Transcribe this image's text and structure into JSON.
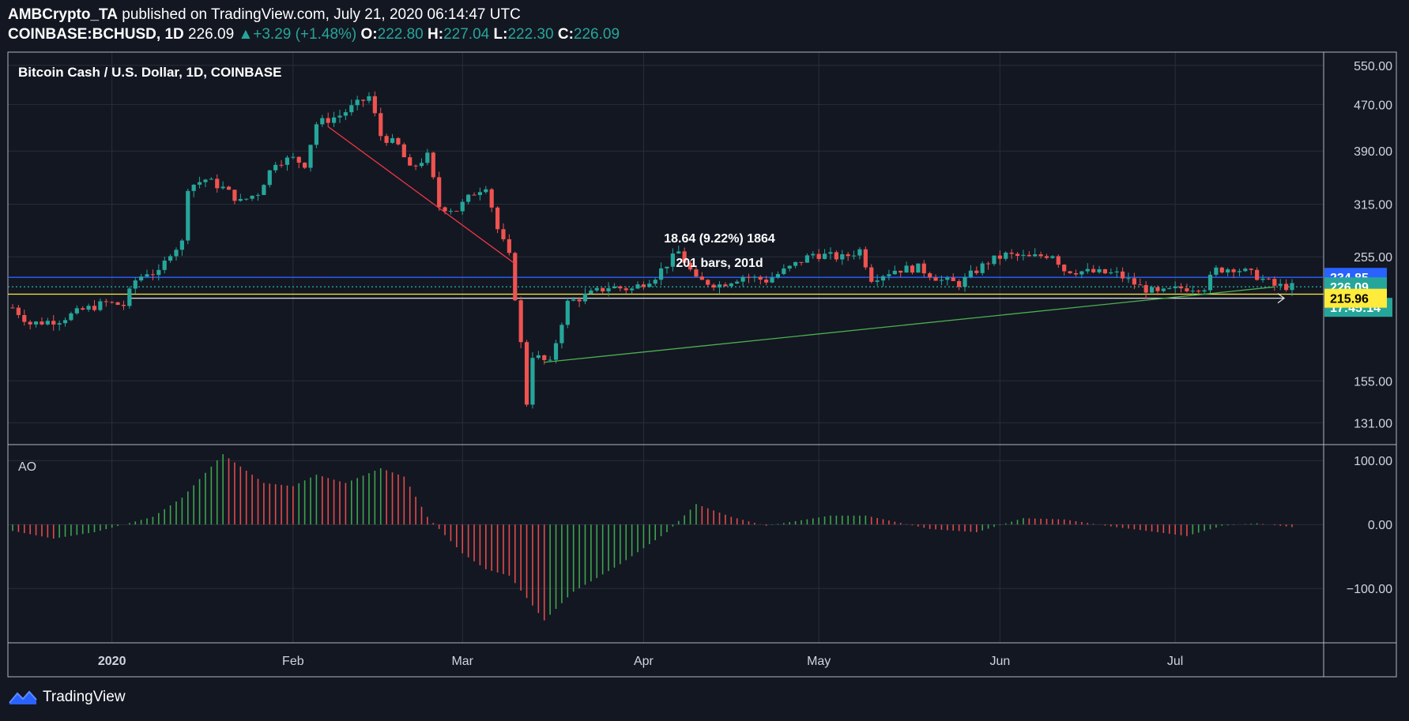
{
  "header": {
    "author": "AMBCrypto_TA",
    "published_text": "published on TradingView.com, July 21, 2020 06:14:47 UTC",
    "symbol": "COINBASE:BCHUSD, 1D",
    "price": "226.09",
    "change_arrow": "▲",
    "change": "+3.29 (+1.48%)",
    "o_label": "O:",
    "o_value": "222.80",
    "h_label": "H:",
    "h_value": "227.04",
    "l_label": "L:",
    "l_value": "222.30",
    "c_label": "C:",
    "c_value": "226.09"
  },
  "pane_title": "Bitcoin Cash / U.S. Dollar, 1D, COINBASE",
  "indicator_label": "AO",
  "footer": {
    "brand": "TradingView"
  },
  "colors": {
    "background": "#131722",
    "up": "#26a69a",
    "down": "#ef5350",
    "blue_line": "#2962ff",
    "yellow_line": "#ffeb3b",
    "trend_up": "#4caf50",
    "trend_down": "#f23645"
  },
  "chart_data": {
    "type": "candlestick",
    "title": "Bitcoin Cash / U.S. Dollar, 1D, COINBASE",
    "x_start": "2019-12-15",
    "x_end": "2020-07-21",
    "x_ticks": [
      {
        "label": "2020",
        "date": "2020-01-01"
      },
      {
        "label": "Feb",
        "date": "2020-02-01"
      },
      {
        "label": "Mar",
        "date": "2020-03-01"
      },
      {
        "label": "Apr",
        "date": "2020-04-01"
      },
      {
        "label": "May",
        "date": "2020-05-01"
      },
      {
        "label": "Jun",
        "date": "2020-06-01"
      },
      {
        "label": "Jul",
        "date": "2020-07-01"
      }
    ],
    "price_axis": {
      "scale": "log",
      "range": [
        120,
        580
      ],
      "ticks": [
        550,
        470,
        390,
        315,
        255,
        155,
        131
      ]
    },
    "price_tick_labels": [
      "550.00",
      "470.00",
      "390.00",
      "315.00",
      "255.00",
      "155.00",
      "131.00"
    ],
    "price_labels": [
      {
        "text": "234.85",
        "value": 234.85,
        "bg": "#2962ff",
        "fg": "#ffffff"
      },
      {
        "text": "226.09",
        "value": 226.09,
        "bg": "#26a69a",
        "fg": "#ffffff"
      },
      {
        "text": "17:45:14",
        "value": 226.09,
        "bg": "#26a69a",
        "fg": "#ffffff",
        "below": true
      },
      {
        "text": "215.96",
        "value": 215.96,
        "bg": "#ffeb3b",
        "fg": "#000000"
      }
    ],
    "horizontal_lines": [
      {
        "value": 234.85,
        "color": "#2962ff"
      },
      {
        "value": 226.09,
        "color": "#26a69a",
        "dotted": true
      },
      {
        "value": 219.5,
        "color": "#ffeb3b"
      },
      {
        "value": 215.96,
        "color": "#e0e0e0",
        "arrow": true,
        "from": "2020-01-04"
      }
    ],
    "trendlines": [
      {
        "from": [
          "2020-02-07",
          430
        ],
        "to": [
          "2020-03-10",
          248
        ],
        "color": "#f23645"
      },
      {
        "from": [
          "2020-03-15",
          167
        ],
        "to": [
          "2020-07-18",
          226
        ],
        "color": "#4caf50"
      }
    ],
    "measure_annotation": {
      "line1": "18.64 (9.22%) 1864",
      "line2": "201 bars, 201d",
      "date": "2020-04-14",
      "value": 255
    },
    "ohlc_anchors": [
      [
        "2019-12-15",
        208
      ],
      [
        "2019-12-18",
        195
      ],
      [
        "2019-12-23",
        198
      ],
      [
        "2019-12-27",
        206
      ],
      [
        "2019-12-31",
        212
      ],
      [
        "2020-01-03",
        210
      ],
      [
        "2020-01-05",
        232
      ],
      [
        "2020-01-07",
        240
      ],
      [
        "2020-01-09",
        238
      ],
      [
        "2020-01-11",
        260
      ],
      [
        "2020-01-13",
        270
      ],
      [
        "2020-01-14",
        338
      ],
      [
        "2020-01-17",
        348
      ],
      [
        "2020-01-20",
        336
      ],
      [
        "2020-01-23",
        318
      ],
      [
        "2020-01-26",
        330
      ],
      [
        "2020-01-29",
        374
      ],
      [
        "2020-02-01",
        378
      ],
      [
        "2020-02-03",
        370
      ],
      [
        "2020-02-05",
        435
      ],
      [
        "2020-02-09",
        450
      ],
      [
        "2020-02-14",
        485
      ],
      [
        "2020-02-16",
        415
      ],
      [
        "2020-02-19",
        398
      ],
      [
        "2020-02-21",
        362
      ],
      [
        "2020-02-24",
        382
      ],
      [
        "2020-02-26",
        312
      ],
      [
        "2020-02-29",
        308
      ],
      [
        "2020-03-03",
        330
      ],
      [
        "2020-03-05",
        340
      ],
      [
        "2020-03-07",
        285
      ],
      [
        "2020-03-09",
        255
      ],
      [
        "2020-03-12",
        142
      ],
      [
        "2020-03-13",
        172
      ],
      [
        "2020-03-16",
        166
      ],
      [
        "2020-03-19",
        212
      ],
      [
        "2020-03-22",
        218
      ],
      [
        "2020-03-26",
        226
      ],
      [
        "2020-03-30",
        224
      ],
      [
        "2020-04-03",
        236
      ],
      [
        "2020-04-07",
        260
      ],
      [
        "2020-04-10",
        232
      ],
      [
        "2020-04-14",
        228
      ],
      [
        "2020-04-18",
        236
      ],
      [
        "2020-04-22",
        232
      ],
      [
        "2020-04-26",
        244
      ],
      [
        "2020-04-30",
        258
      ],
      [
        "2020-05-05",
        254
      ],
      [
        "2020-05-08",
        262
      ],
      [
        "2020-05-10",
        234
      ],
      [
        "2020-05-14",
        242
      ],
      [
        "2020-05-18",
        244
      ],
      [
        "2020-05-22",
        232
      ],
      [
        "2020-05-25",
        229
      ],
      [
        "2020-05-30",
        250
      ],
      [
        "2020-06-02",
        257
      ],
      [
        "2020-06-06",
        254
      ],
      [
        "2020-06-10",
        258
      ],
      [
        "2020-06-12",
        242
      ],
      [
        "2020-06-16",
        240
      ],
      [
        "2020-06-21",
        238
      ],
      [
        "2020-06-25",
        226
      ],
      [
        "2020-06-28",
        220
      ],
      [
        "2020-07-02",
        225
      ],
      [
        "2020-07-06",
        226
      ],
      [
        "2020-07-08",
        242
      ],
      [
        "2020-07-11",
        244
      ],
      [
        "2020-07-15",
        236
      ],
      [
        "2020-07-18",
        227
      ],
      [
        "2020-07-21",
        226.09
      ]
    ],
    "ao": {
      "axis_ticks": [
        100,
        0,
        -100
      ],
      "axis_tick_labels": [
        "100.00",
        "0.00",
        "−100.00"
      ],
      "range": [
        -185,
        125
      ],
      "anchors": [
        [
          "2019-12-15",
          -10
        ],
        [
          "2019-12-22",
          -22
        ],
        [
          "2019-12-29",
          -12
        ],
        [
          "2020-01-03",
          0
        ],
        [
          "2020-01-08",
          12
        ],
        [
          "2020-01-13",
          42
        ],
        [
          "2020-01-20",
          110
        ],
        [
          "2020-01-27",
          65
        ],
        [
          "2020-02-01",
          60
        ],
        [
          "2020-02-05",
          78
        ],
        [
          "2020-02-10",
          65
        ],
        [
          "2020-02-16",
          88
        ],
        [
          "2020-02-20",
          75
        ],
        [
          "2020-02-24",
          12
        ],
        [
          "2020-03-01",
          -45
        ],
        [
          "2020-03-05",
          -70
        ],
        [
          "2020-03-09",
          -80
        ],
        [
          "2020-03-15",
          -150
        ],
        [
          "2020-03-20",
          -105
        ],
        [
          "2020-03-28",
          -62
        ],
        [
          "2020-04-05",
          -12
        ],
        [
          "2020-04-10",
          32
        ],
        [
          "2020-04-16",
          12
        ],
        [
          "2020-04-22",
          -2
        ],
        [
          "2020-05-03",
          14
        ],
        [
          "2020-05-09",
          14
        ],
        [
          "2020-05-20",
          -7
        ],
        [
          "2020-05-28",
          -12
        ],
        [
          "2020-06-05",
          10
        ],
        [
          "2020-06-12",
          8
        ],
        [
          "2020-06-20",
          -3
        ],
        [
          "2020-06-28",
          -12
        ],
        [
          "2020-07-03",
          -18
        ],
        [
          "2020-07-09",
          -2
        ],
        [
          "2020-07-15",
          2
        ],
        [
          "2020-07-21",
          -4
        ]
      ]
    }
  }
}
